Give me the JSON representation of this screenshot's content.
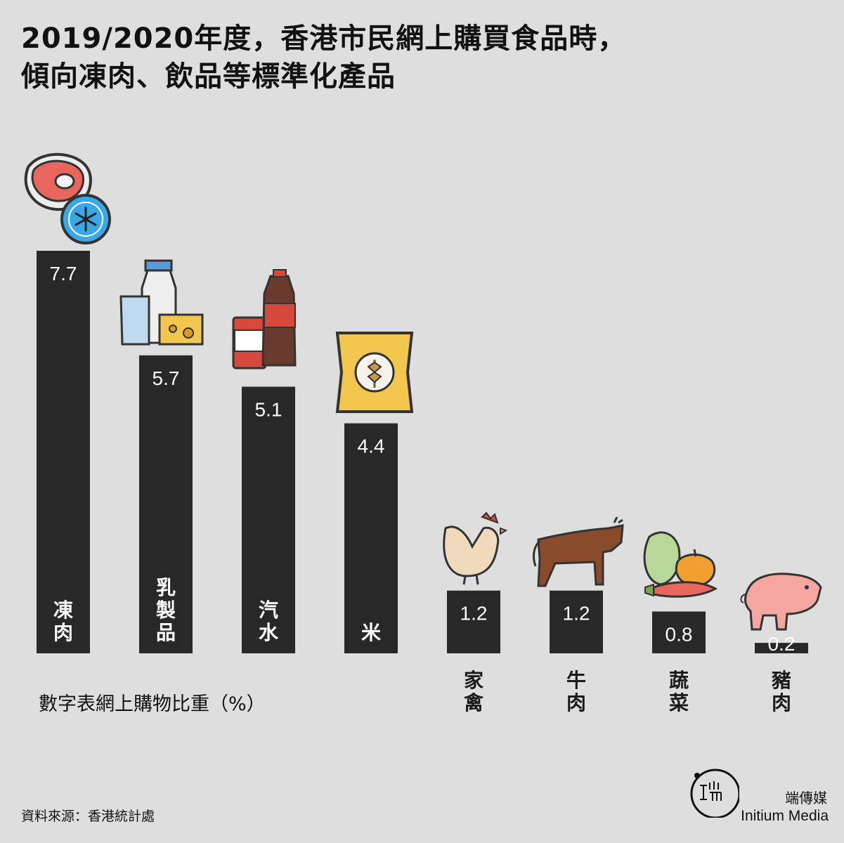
{
  "title": "2019/2020年度，香港市民網上購買食品時，傾向凍肉、飲品等標準化產品",
  "note": "數字表網上購物比重（%）",
  "source": "資料來源：香港統計處",
  "brand": {
    "cn": "端傳媒",
    "en": "Initium Media"
  },
  "colors": {
    "background": "#dedede",
    "bar": "#282828"
  },
  "chart_data": {
    "type": "bar",
    "categories": [
      "凍肉",
      "乳製品",
      "汽水",
      "米",
      "家禽",
      "牛肉",
      "蔬菜",
      "豬肉"
    ],
    "values": [
      7.7,
      5.7,
      5.1,
      4.4,
      1.2,
      1.2,
      0.8,
      0.2
    ],
    "value_labels": [
      "7.7",
      "5.7",
      "5.1",
      "4.4",
      "1.2",
      "1.2",
      "0.8",
      "0.2"
    ],
    "icons": [
      "frozen-meat-icon",
      "dairy-icon",
      "soda-icon",
      "rice-bag-icon",
      "chicken-icon",
      "cow-icon",
      "vegetable-icon",
      "pig-icon"
    ],
    "ylim": [
      0,
      7.7
    ],
    "grid": false,
    "legend": "none"
  }
}
